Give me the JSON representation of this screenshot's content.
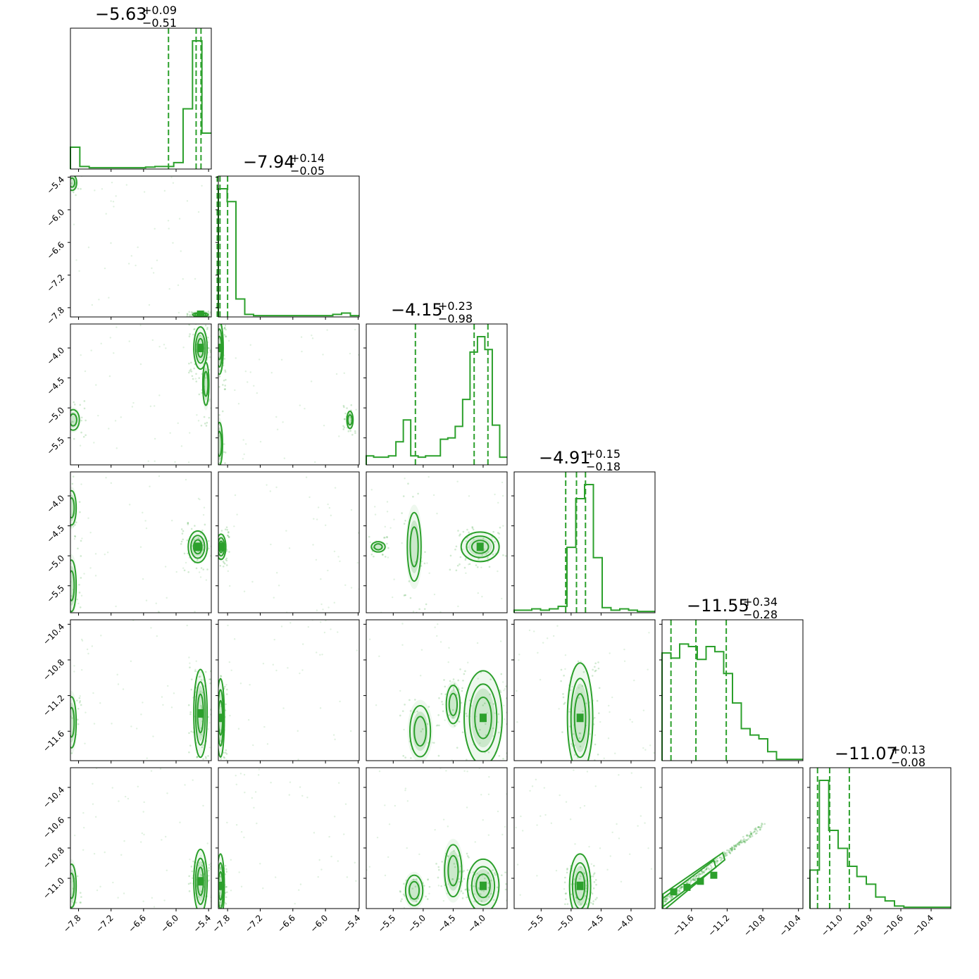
{
  "chart_data": {
    "type": "corner",
    "color": "#2ca02c",
    "parameters": [
      {
        "index": 0,
        "title_value": "−5.63",
        "title_plus": "+0.09",
        "title_minus": "−0.51",
        "range": [
          -7.95,
          -5.35
        ],
        "ticks": [
          -7.8,
          -7.2,
          -6.6,
          -6.0,
          -5.4
        ],
        "tick_labels": [
          "−7.8",
          "−7.2",
          "−6.6",
          "−6.0",
          "−5.4"
        ],
        "quantiles": [
          -6.14,
          -5.63,
          -5.54
        ],
        "hist_counts": [
          0.17,
          0.02,
          0.01,
          0.01,
          0.01,
          0.01,
          0.01,
          0.01,
          0.015,
          0.02,
          0.02,
          0.05,
          0.47,
          1.0,
          0.28
        ]
      },
      {
        "index": 1,
        "title_value": "−7.94",
        "title_plus": "+0.14",
        "title_minus": "−0.05",
        "range": [
          -7.97,
          -5.38
        ],
        "ticks": [
          -7.8,
          -7.2,
          -6.6,
          -6.0,
          -5.4
        ],
        "tick_labels": [
          "−7.8",
          "−7.2",
          "−6.6",
          "−6.0",
          "−5.4"
        ],
        "quantiles": [
          -7.99,
          -7.94,
          -7.8
        ],
        "hist_counts": [
          1.0,
          0.9,
          0.14,
          0.02,
          0.01,
          0.01,
          0.01,
          0.01,
          0.01,
          0.01,
          0.01,
          0.01,
          0.01,
          0.02,
          0.03,
          0.01
        ]
      },
      {
        "index": 2,
        "title_value": "−4.15",
        "title_plus": "+0.23",
        "title_minus": "−0.98",
        "range": [
          -5.95,
          -3.6
        ],
        "ticks": [
          -5.5,
          -5.0,
          -4.5,
          -4.0
        ],
        "tick_labels": [
          "−5.5",
          "−5.0",
          "−4.5",
          "−4.0"
        ],
        "quantiles": [
          -5.13,
          -4.15,
          -3.92
        ],
        "hist_counts": [
          0.07,
          0.06,
          0.06,
          0.07,
          0.18,
          0.35,
          0.07,
          0.06,
          0.07,
          0.07,
          0.2,
          0.21,
          0.3,
          0.51,
          0.88,
          1.0,
          0.9,
          0.31,
          0.06
        ]
      },
      {
        "index": 3,
        "title_value": "−4.91",
        "title_plus": "+0.15",
        "title_minus": "−0.18",
        "range": [
          -5.95,
          -3.6
        ],
        "ticks": [
          -5.5,
          -5.0,
          -4.5,
          -4.0
        ],
        "tick_labels": [
          "−5.5",
          "−5.0",
          "−4.5",
          "−4.0"
        ],
        "quantiles": [
          -5.09,
          -4.91,
          -4.76
        ],
        "hist_counts": [
          0.02,
          0.02,
          0.03,
          0.02,
          0.03,
          0.05,
          0.51,
          0.89,
          1.0,
          0.43,
          0.04,
          0.02,
          0.03,
          0.02,
          0.01,
          0.01
        ]
      },
      {
        "index": 4,
        "title_value": "−11.55",
        "title_plus": "+0.34",
        "title_minus": "−0.28",
        "range": [
          -11.93,
          -10.35
        ],
        "ticks": [
          -11.6,
          -11.2,
          -10.8,
          -10.4
        ],
        "tick_labels": [
          "−11.6",
          "−11.2",
          "−10.8",
          "−10.4"
        ],
        "quantiles": [
          -11.83,
          -11.55,
          -11.21
        ],
        "hist_counts": [
          0.84,
          0.8,
          0.91,
          0.89,
          0.79,
          0.89,
          0.85,
          0.68,
          0.45,
          0.25,
          0.2,
          0.17,
          0.07,
          0.01,
          0.01,
          0.01
        ]
      },
      {
        "index": 5,
        "title_value": "−11.07",
        "title_plus": "+0.13",
        "title_minus": "−0.08",
        "range": [
          -11.2,
          -10.27
        ],
        "ticks": [
          -11.0,
          -10.8,
          -10.6,
          -10.4
        ],
        "tick_labels": [
          "−11.0",
          "−10.8",
          "−10.6",
          "−10.4"
        ],
        "quantiles": [
          -11.15,
          -11.07,
          -10.94
        ],
        "hist_counts": [
          0.3,
          1.0,
          0.61,
          0.47,
          0.33,
          0.25,
          0.19,
          0.09,
          0.06,
          0.02,
          0.01,
          0.01,
          0.01,
          0.01,
          0.01
        ]
      }
    ],
    "pair_modes": [
      {
        "row": 1,
        "col": 0,
        "modes": [
          [
            -5.55,
            -7.93,
            0.08,
            0.02,
            1.0
          ],
          [
            -7.92,
            -5.5,
            0.06,
            0.1,
            0.5
          ]
        ]
      },
      {
        "row": 2,
        "col": 0,
        "modes": [
          [
            -5.55,
            -4.0,
            0.07,
            0.2,
            1.0
          ],
          [
            -7.9,
            -5.2,
            0.08,
            0.12,
            0.5
          ],
          [
            -5.45,
            -4.6,
            0.04,
            0.25,
            0.4
          ]
        ]
      },
      {
        "row": 2,
        "col": 1,
        "modes": [
          [
            -7.95,
            -4.0,
            0.04,
            0.25,
            1.0
          ],
          [
            -5.55,
            -5.2,
            0.04,
            0.1,
            0.4
          ],
          [
            -7.95,
            -5.6,
            0.04,
            0.25,
            0.5
          ]
        ]
      },
      {
        "row": 3,
        "col": 0,
        "modes": [
          [
            -5.6,
            -4.85,
            0.1,
            0.15,
            1.0
          ],
          [
            -7.93,
            -4.2,
            0.06,
            0.2,
            0.4
          ],
          [
            -7.93,
            -5.5,
            0.06,
            0.3,
            0.4
          ]
        ]
      },
      {
        "row": 3,
        "col": 1,
        "modes": [
          [
            -7.92,
            -4.85,
            0.05,
            0.12,
            1.0
          ]
        ]
      },
      {
        "row": 3,
        "col": 2,
        "modes": [
          [
            -4.05,
            -4.85,
            0.18,
            0.14,
            1.0
          ],
          [
            -5.15,
            -4.85,
            0.08,
            0.4,
            0.35
          ],
          [
            -5.75,
            -4.85,
            0.08,
            0.06,
            0.3
          ]
        ]
      },
      {
        "row": 4,
        "col": 0,
        "modes": [
          [
            -5.55,
            -11.4,
            0.07,
            0.28,
            1.0
          ],
          [
            -7.93,
            -11.5,
            0.06,
            0.2,
            0.4
          ]
        ]
      },
      {
        "row": 4,
        "col": 1,
        "modes": [
          [
            -7.93,
            -11.45,
            0.04,
            0.25,
            1.0
          ]
        ]
      },
      {
        "row": 4,
        "col": 2,
        "modes": [
          [
            -4.0,
            -11.45,
            0.18,
            0.3,
            1.0
          ],
          [
            -5.05,
            -11.6,
            0.12,
            0.2,
            0.45
          ],
          [
            -4.5,
            -11.3,
            0.08,
            0.15,
            0.4
          ]
        ]
      },
      {
        "row": 4,
        "col": 3,
        "modes": [
          [
            -4.85,
            -11.45,
            0.12,
            0.35,
            1.0
          ]
        ]
      },
      {
        "row": 5,
        "col": 0,
        "modes": [
          [
            -5.55,
            -11.02,
            0.07,
            0.12,
            1.0
          ],
          [
            -7.93,
            -11.05,
            0.06,
            0.1,
            0.4
          ]
        ]
      },
      {
        "row": 5,
        "col": 1,
        "modes": [
          [
            -7.93,
            -11.05,
            0.04,
            0.12,
            1.0
          ]
        ]
      },
      {
        "row": 5,
        "col": 2,
        "modes": [
          [
            -4.0,
            -11.05,
            0.15,
            0.1,
            1.0
          ],
          [
            -4.5,
            -10.95,
            0.1,
            0.12,
            0.5
          ],
          [
            -5.15,
            -11.08,
            0.1,
            0.07,
            0.4
          ]
        ]
      },
      {
        "row": 5,
        "col": 3,
        "modes": [
          [
            -4.85,
            -11.05,
            0.1,
            0.12,
            1.0
          ]
        ]
      },
      {
        "row": 5,
        "col": 4,
        "modes": "diagonal"
      }
    ]
  }
}
